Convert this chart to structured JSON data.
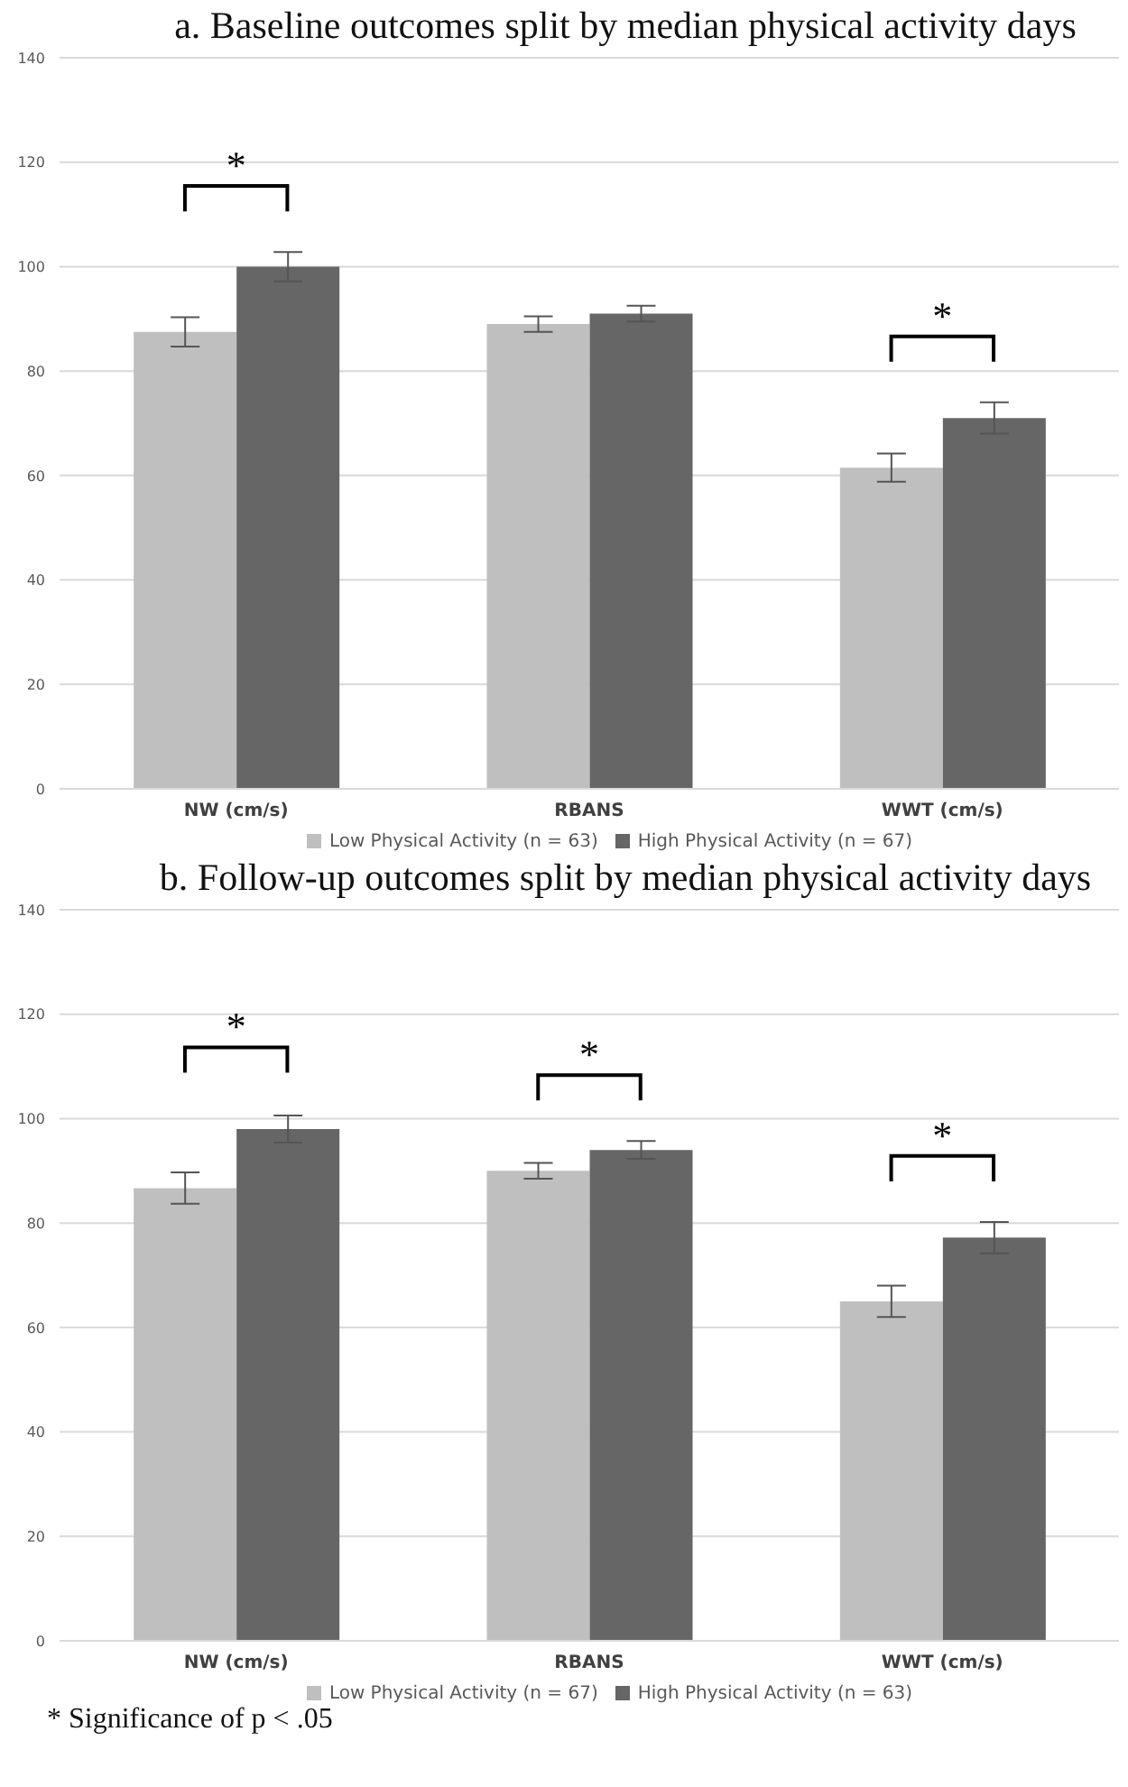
{
  "chart_data": [
    {
      "type": "bar",
      "title": "a. Baseline outcomes split by median physical activity days",
      "categories": [
        "NW (cm/s)",
        "RBANS",
        "WWT (cm/s)"
      ],
      "series": [
        {
          "name": "Low Physical Activity (n = 63)",
          "color": "#bfbfbf",
          "values": [
            87.5,
            89,
            61.5
          ],
          "errors": [
            2.8,
            1.5,
            2.7
          ]
        },
        {
          "name": "High Physical Activity (n = 67)",
          "color": "#666666",
          "values": [
            100,
            91,
            71
          ],
          "errors": [
            2.8,
            1.5,
            3
          ]
        }
      ],
      "ylim": [
        0,
        140
      ],
      "yticks": [
        0,
        20,
        40,
        60,
        80,
        100,
        120,
        140
      ],
      "grid": "y",
      "legend": "bottom",
      "annotations": [
        {
          "text": "*",
          "x": "NW (cm/s)",
          "y": 100
        },
        {
          "text": "*",
          "x": "WWT (cm/s)",
          "y": 71
        }
      ]
    },
    {
      "type": "bar",
      "title": "b. Follow-up outcomes split by median physical activity days",
      "categories": [
        "NW (cm/s)",
        "RBANS",
        "WWT (cm/s)"
      ],
      "series": [
        {
          "name": "Low Physical Activity (n = 67)",
          "color": "#bfbfbf",
          "values": [
            86.7,
            90,
            65
          ],
          "errors": [
            3,
            1.5,
            3
          ]
        },
        {
          "name": "High Physical Activity (n = 63)",
          "color": "#666666",
          "values": [
            98,
            94,
            77.2
          ],
          "errors": [
            2.6,
            1.7,
            3
          ]
        }
      ],
      "ylim": [
        0,
        140
      ],
      "yticks": [
        0,
        20,
        40,
        60,
        80,
        100,
        120,
        140
      ],
      "grid": "y",
      "legend": "bottom",
      "annotations": [
        {
          "text": "*",
          "x": "NW (cm/s)",
          "y": 98
        },
        {
          "text": "*",
          "x": "RBANS",
          "y": 94
        },
        {
          "text": "*",
          "x": "WWT (cm/s)",
          "y": 77.2
        },
        "* Significance of p < .05"
      ]
    }
  ]
}
